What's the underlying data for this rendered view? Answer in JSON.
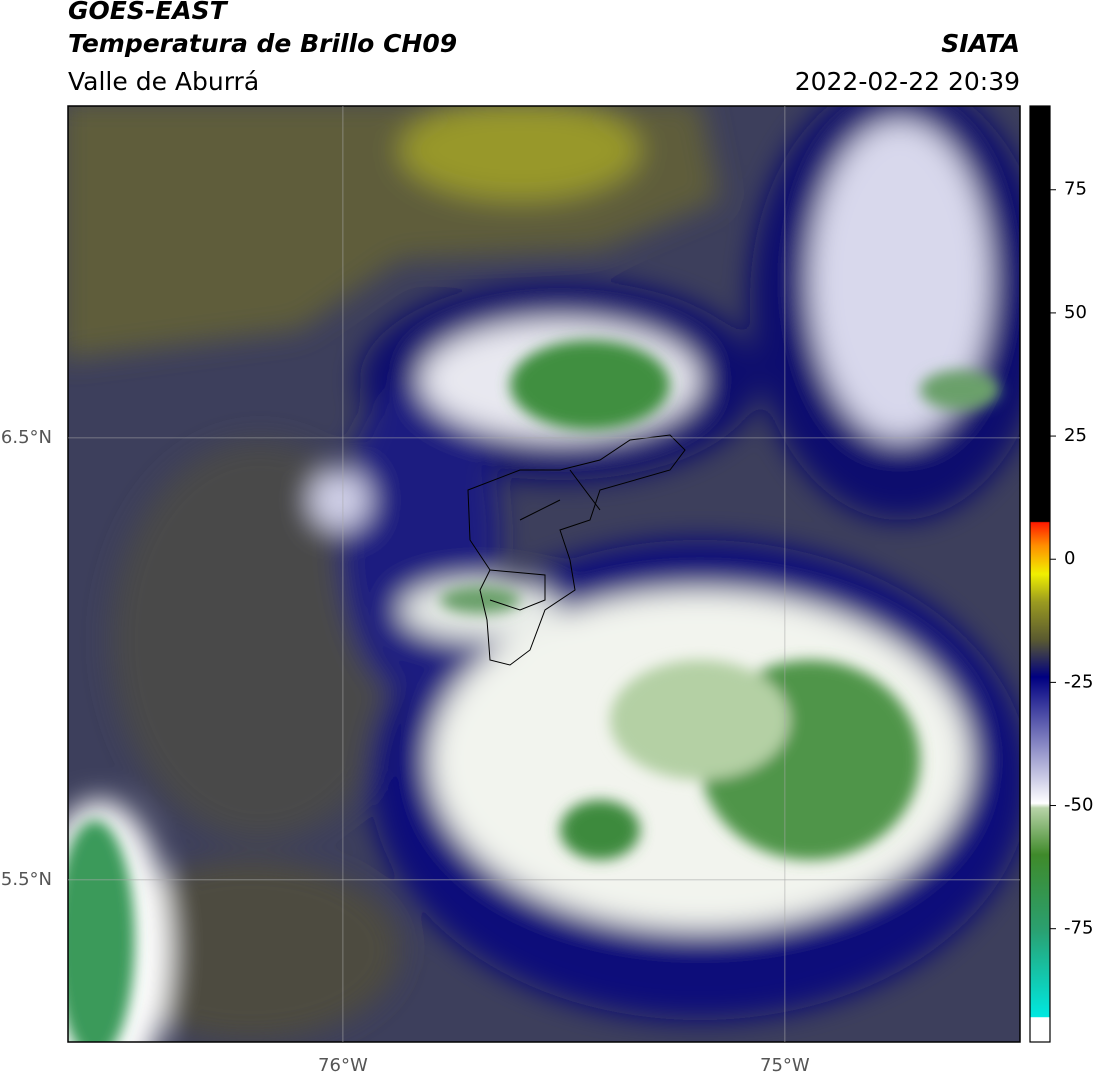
{
  "header": {
    "title": "GOES-EAST",
    "subtitle": "Temperatura de Brillo CH09",
    "region": "Valle de Aburrá",
    "source": "SIATA",
    "datetime": "2022-02-22 20:39"
  },
  "map": {
    "xlim": [
      -76.622,
      -74.468
    ],
    "ylim": [
      5.133,
      7.251
    ],
    "xticks": [
      {
        "value": -76,
        "label": "76°W"
      },
      {
        "value": -75,
        "label": "75°W"
      }
    ],
    "yticks": [
      {
        "value": 6.5,
        "label": "6.5°N"
      },
      {
        "value": 5.5,
        "label": "5.5°N"
      }
    ],
    "grid": true
  },
  "colorbar": {
    "clim": [
      -98,
      92
    ],
    "ticks": [
      75,
      50,
      25,
      0,
      -25,
      -50,
      -75
    ]
  }
}
